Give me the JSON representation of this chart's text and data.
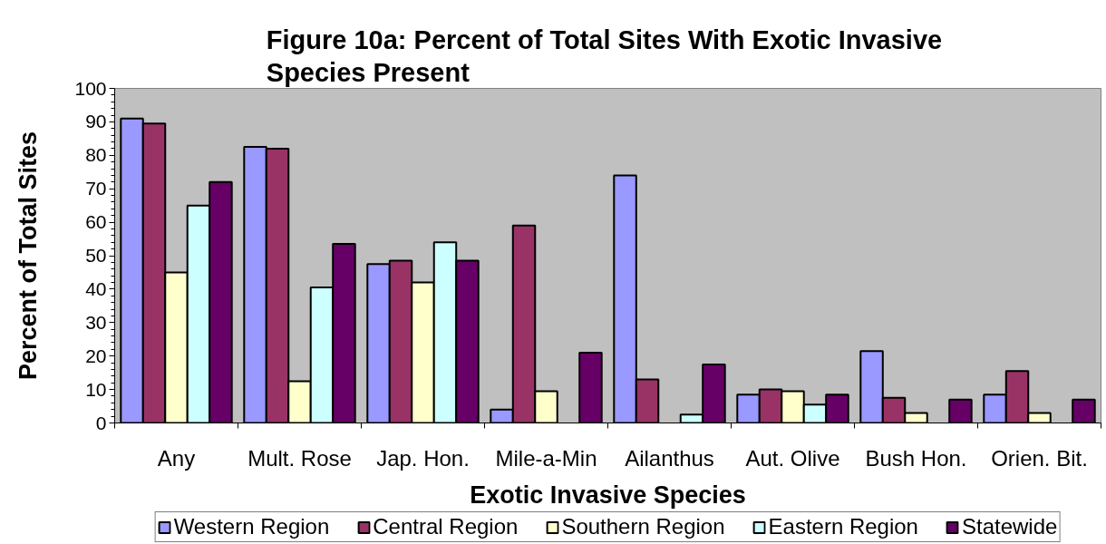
{
  "chart_data": {
    "type": "bar",
    "title": "Figure 10a:  Percent of Total Sites With Exotic Invasive Species Present",
    "xlabel": "Exotic Invasive Species",
    "ylabel": "Percent of Total Sites",
    "categories": [
      "Any",
      "Mult. Rose",
      "Jap. Hon.",
      "Mile-a-Min",
      "Ailanthus",
      "Aut. Olive",
      "Bush Hon.",
      "Orien. Bit."
    ],
    "series": [
      {
        "name": "Western Region",
        "color": "#9999ff",
        "values": [
          91,
          82.5,
          47.5,
          4,
          74,
          8.5,
          21.5,
          8.5
        ]
      },
      {
        "name": "Central Region",
        "color": "#993366",
        "values": [
          89.5,
          82,
          48.5,
          59,
          13,
          10,
          7.5,
          15.5
        ]
      },
      {
        "name": "Southern Region",
        "color": "#ffffcc",
        "values": [
          45,
          12.5,
          42,
          9.5,
          null,
          9.5,
          3,
          3
        ]
      },
      {
        "name": "Eastern Region",
        "color": "#ccffff",
        "values": [
          65,
          40.5,
          54,
          null,
          2.5,
          5.5,
          null,
          null
        ]
      },
      {
        "name": "Statewide",
        "color": "#660066",
        "values": [
          72,
          53.5,
          48.5,
          21,
          17.5,
          8.5,
          7,
          7
        ]
      }
    ],
    "ylim": [
      0,
      100
    ],
    "yticks": [
      0,
      {
        "value": 2,
        "label": null
      },
      {
        "value": 4,
        "label": null
      },
      {
        "value": 6,
        "label": null
      },
      {
        "value": 8,
        "label": null
      },
      10,
      {
        "value": 12,
        "label": null
      },
      {
        "value": 14,
        "label": null
      },
      {
        "value": 16,
        "label": null
      },
      {
        "value": 18,
        "label": null
      },
      20,
      {
        "value": 22,
        "label": null
      },
      {
        "value": 24,
        "label": null
      },
      {
        "value": 26,
        "label": null
      },
      {
        "value": 28,
        "label": null
      },
      30,
      {
        "value": 32,
        "label": null
      },
      {
        "value": 34,
        "label": null
      },
      {
        "value": 36,
        "label": null
      },
      {
        "value": 38,
        "label": null
      },
      40,
      {
        "value": 42,
        "label": null
      },
      {
        "value": 44,
        "label": null
      },
      {
        "value": 46,
        "label": null
      },
      {
        "value": 48,
        "label": null
      },
      50,
      {
        "value": 52,
        "label": null
      },
      {
        "value": 54,
        "label": null
      },
      {
        "value": 56,
        "label": null
      },
      {
        "value": 58,
        "label": null
      },
      60,
      {
        "value": 62,
        "label": null
      },
      {
        "value": 64,
        "label": null
      },
      {
        "value": 66,
        "label": null
      },
      {
        "value": 68,
        "label": null
      },
      70,
      {
        "value": 72,
        "label": null
      },
      {
        "value": 74,
        "label": null
      },
      {
        "value": 76,
        "label": null
      },
      {
        "value": 78,
        "label": null
      },
      80,
      {
        "value": 82,
        "label": null
      },
      {
        "value": 84,
        "label": null
      },
      {
        "value": 86,
        "label": null
      },
      {
        "value": 88,
        "label": null
      },
      90,
      {
        "value": 92,
        "label": null
      },
      {
        "value": 94,
        "label": null
      },
      {
        "value": 96,
        "label": null
      },
      {
        "value": 98,
        "label": null
      },
      100
    ],
    "grid": false,
    "legend": "bottom"
  }
}
